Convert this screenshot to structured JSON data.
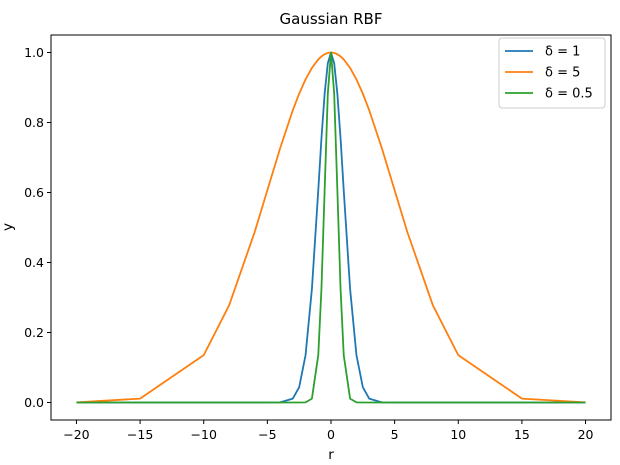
{
  "chart_data": {
    "type": "line",
    "title": "Gaussian RBF",
    "xlabel": "r",
    "ylabel": "y",
    "xlim": [
      -22,
      22
    ],
    "ylim": [
      -0.05,
      1.05
    ],
    "xticks": [
      -20,
      -15,
      -10,
      -5,
      0,
      5,
      10,
      15,
      20
    ],
    "xtick_labels": [
      "−20",
      "−15",
      "−10",
      "−5",
      "0",
      "5",
      "10",
      "15",
      "20"
    ],
    "yticks": [
      0.0,
      0.2,
      0.4,
      0.6,
      0.8,
      1.0
    ],
    "ytick_labels": [
      "0.0",
      "0.2",
      "0.4",
      "0.6",
      "0.8",
      "1.0"
    ],
    "grid": false,
    "legend_position": "top-right",
    "x": [
      -20,
      -15,
      -10,
      -8,
      -6,
      -5,
      -4,
      -3,
      -2.5,
      -2,
      -1.5,
      -1,
      -0.75,
      -0.5,
      -0.25,
      0,
      0.25,
      0.5,
      0.75,
      1,
      1.5,
      2,
      2.5,
      3,
      4,
      5,
      6,
      8,
      10,
      15,
      20
    ],
    "series": [
      {
        "name": "δ = 1",
        "color": "#1f77b4",
        "values": [
          0.0,
          0.0,
          0.0,
          0.0,
          0.0,
          0.0,
          0.0003,
          0.0111,
          0.0439,
          0.1353,
          0.3247,
          0.6065,
          0.7548,
          0.8825,
          0.9692,
          1.0,
          0.9692,
          0.8825,
          0.7548,
          0.6065,
          0.3247,
          0.1353,
          0.0439,
          0.0111,
          0.0003,
          0.0,
          0.0,
          0.0,
          0.0,
          0.0,
          0.0
        ]
      },
      {
        "name": "δ = 5",
        "color": "#ff7f0e",
        "values": [
          0.0003,
          0.0111,
          0.1353,
          0.278,
          0.4868,
          0.6065,
          0.7261,
          0.8353,
          0.8825,
          0.9231,
          0.956,
          0.9802,
          0.9888,
          0.995,
          0.9988,
          1.0,
          0.9988,
          0.995,
          0.9888,
          0.9802,
          0.956,
          0.9231,
          0.8825,
          0.8353,
          0.7261,
          0.6065,
          0.4868,
          0.278,
          0.1353,
          0.0111,
          0.0003
        ]
      },
      {
        "name": "δ = 0.5",
        "color": "#2ca02c",
        "values": [
          0.0,
          0.0,
          0.0,
          0.0,
          0.0,
          0.0,
          0.0,
          0.0,
          0.0,
          0.0003,
          0.0111,
          0.1353,
          0.3247,
          0.6065,
          0.8825,
          1.0,
          0.8825,
          0.6065,
          0.3247,
          0.1353,
          0.0111,
          0.0003,
          0.0,
          0.0,
          0.0,
          0.0,
          0.0,
          0.0,
          0.0,
          0.0,
          0.0
        ]
      }
    ]
  }
}
